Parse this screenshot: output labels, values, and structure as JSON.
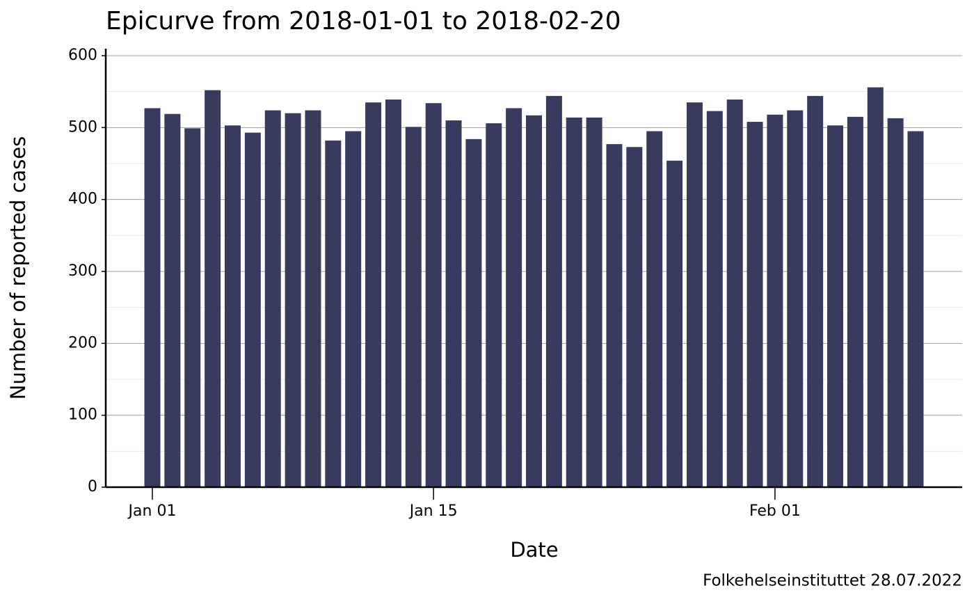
{
  "chart_data": {
    "type": "bar",
    "title": "Epicurve from 2018-01-01 to 2018-02-20",
    "xlabel": "Date",
    "ylabel": "Number of reported cases",
    "caption": "Folkehelseinstituttet 28.07.2022",
    "categories": [
      "Jan 01",
      null,
      null,
      null,
      null,
      null,
      null,
      null,
      null,
      null,
      null,
      null,
      null,
      null,
      "Jan 15",
      null,
      null,
      null,
      null,
      null,
      null,
      null,
      null,
      null,
      null,
      null,
      null,
      null,
      null,
      null,
      null,
      "Feb 01",
      null,
      null,
      null,
      null,
      null,
      null,
      null
    ],
    "values": [
      527,
      519,
      499,
      552,
      503,
      493,
      524,
      520,
      524,
      482,
      495,
      535,
      539,
      501,
      534,
      510,
      484,
      506,
      527,
      517,
      544,
      514,
      514,
      477,
      473,
      495,
      454,
      535,
      523,
      539,
      508,
      518,
      524,
      544,
      503,
      515,
      556,
      513,
      495
    ],
    "color": "#393b5e",
    "ylim": [
      0,
      600
    ],
    "yticks": [
      0,
      100,
      200,
      300,
      400,
      500,
      600
    ],
    "minor_yticks": [
      50,
      150,
      250,
      350,
      450,
      550
    ],
    "grid": true
  }
}
